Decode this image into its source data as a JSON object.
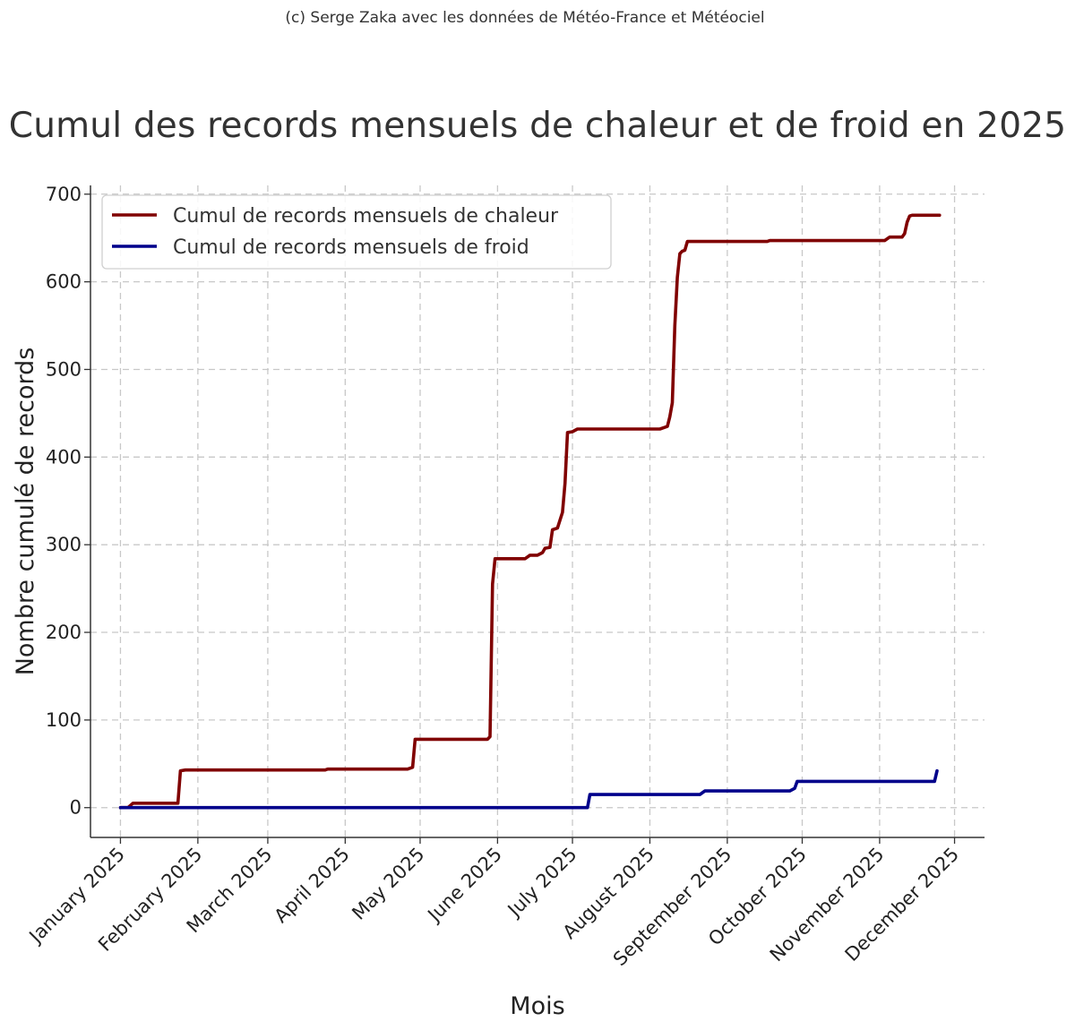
{
  "credit": "(c) Serge Zaka avec les données de Météo-France et Météociel",
  "chart_data": {
    "type": "line",
    "title": "Cumul des records mensuels de chaleur et de froid en 2025",
    "xlabel": "Mois",
    "ylabel": "Nombre cumulé de records",
    "ylim": [
      -34,
      710
    ],
    "xlim": [
      "2024-12-20",
      "2025-12-13"
    ],
    "y_ticks": [
      0,
      100,
      200,
      300,
      400,
      500,
      600,
      700
    ],
    "x_ticks": [
      {
        "date": "2025-01-01",
        "label": "January 2025"
      },
      {
        "date": "2025-02-01",
        "label": "February 2025"
      },
      {
        "date": "2025-03-01",
        "label": "March 2025"
      },
      {
        "date": "2025-04-01",
        "label": "April 2025"
      },
      {
        "date": "2025-05-01",
        "label": "May 2025"
      },
      {
        "date": "2025-06-01",
        "label": "June 2025"
      },
      {
        "date": "2025-07-01",
        "label": "July 2025"
      },
      {
        "date": "2025-08-01",
        "label": "August 2025"
      },
      {
        "date": "2025-09-01",
        "label": "September 2025"
      },
      {
        "date": "2025-10-01",
        "label": "October 2025"
      },
      {
        "date": "2025-11-01",
        "label": "November 2025"
      },
      {
        "date": "2025-12-01",
        "label": "December 2025"
      }
    ],
    "grid": true,
    "legend_position": "top-left",
    "series": [
      {
        "name": "Cumul de records mensuels de chaleur",
        "color": "#800000",
        "points": [
          [
            "2025-01-01",
            0
          ],
          [
            "2025-01-04",
            0
          ],
          [
            "2025-01-06",
            5
          ],
          [
            "2025-01-24",
            5
          ],
          [
            "2025-01-25",
            42
          ],
          [
            "2025-01-27",
            43
          ],
          [
            "2025-03-24",
            43
          ],
          [
            "2025-03-25",
            44
          ],
          [
            "2025-04-26",
            44
          ],
          [
            "2025-04-28",
            46
          ],
          [
            "2025-04-29",
            78
          ],
          [
            "2025-05-28",
            78
          ],
          [
            "2025-05-29",
            81
          ],
          [
            "2025-05-30",
            255
          ],
          [
            "2025-05-31",
            284
          ],
          [
            "2025-06-12",
            284
          ],
          [
            "2025-06-14",
            288
          ],
          [
            "2025-06-17",
            288
          ],
          [
            "2025-06-19",
            291
          ],
          [
            "2025-06-20",
            296
          ],
          [
            "2025-06-22",
            297
          ],
          [
            "2025-06-23",
            317
          ],
          [
            "2025-06-25",
            319
          ],
          [
            "2025-06-27",
            337
          ],
          [
            "2025-06-28",
            370
          ],
          [
            "2025-06-29",
            428
          ],
          [
            "2025-07-01",
            429
          ],
          [
            "2025-07-03",
            432
          ],
          [
            "2025-08-05",
            432
          ],
          [
            "2025-08-07",
            434
          ],
          [
            "2025-08-08",
            435
          ],
          [
            "2025-08-09",
            446
          ],
          [
            "2025-08-10",
            462
          ],
          [
            "2025-08-11",
            550
          ],
          [
            "2025-08-12",
            605
          ],
          [
            "2025-08-13",
            632
          ],
          [
            "2025-08-14",
            635
          ],
          [
            "2025-08-15",
            636
          ],
          [
            "2025-08-16",
            646
          ],
          [
            "2025-09-17",
            646
          ],
          [
            "2025-09-18",
            647
          ],
          [
            "2025-11-03",
            647
          ],
          [
            "2025-11-05",
            651
          ],
          [
            "2025-11-10",
            651
          ],
          [
            "2025-11-11",
            655
          ],
          [
            "2025-11-12",
            668
          ],
          [
            "2025-11-13",
            675
          ],
          [
            "2025-11-14",
            676
          ],
          [
            "2025-11-25",
            676
          ]
        ]
      },
      {
        "name": "Cumul de records mensuels de froid",
        "color": "#00008B",
        "points": [
          [
            "2025-01-01",
            0
          ],
          [
            "2025-07-07",
            0
          ],
          [
            "2025-07-08",
            15
          ],
          [
            "2025-08-21",
            15
          ],
          [
            "2025-08-23",
            19
          ],
          [
            "2025-09-26",
            19
          ],
          [
            "2025-09-28",
            22
          ],
          [
            "2025-09-29",
            30
          ],
          [
            "2025-11-23",
            30
          ],
          [
            "2025-11-24",
            42
          ]
        ]
      }
    ]
  }
}
